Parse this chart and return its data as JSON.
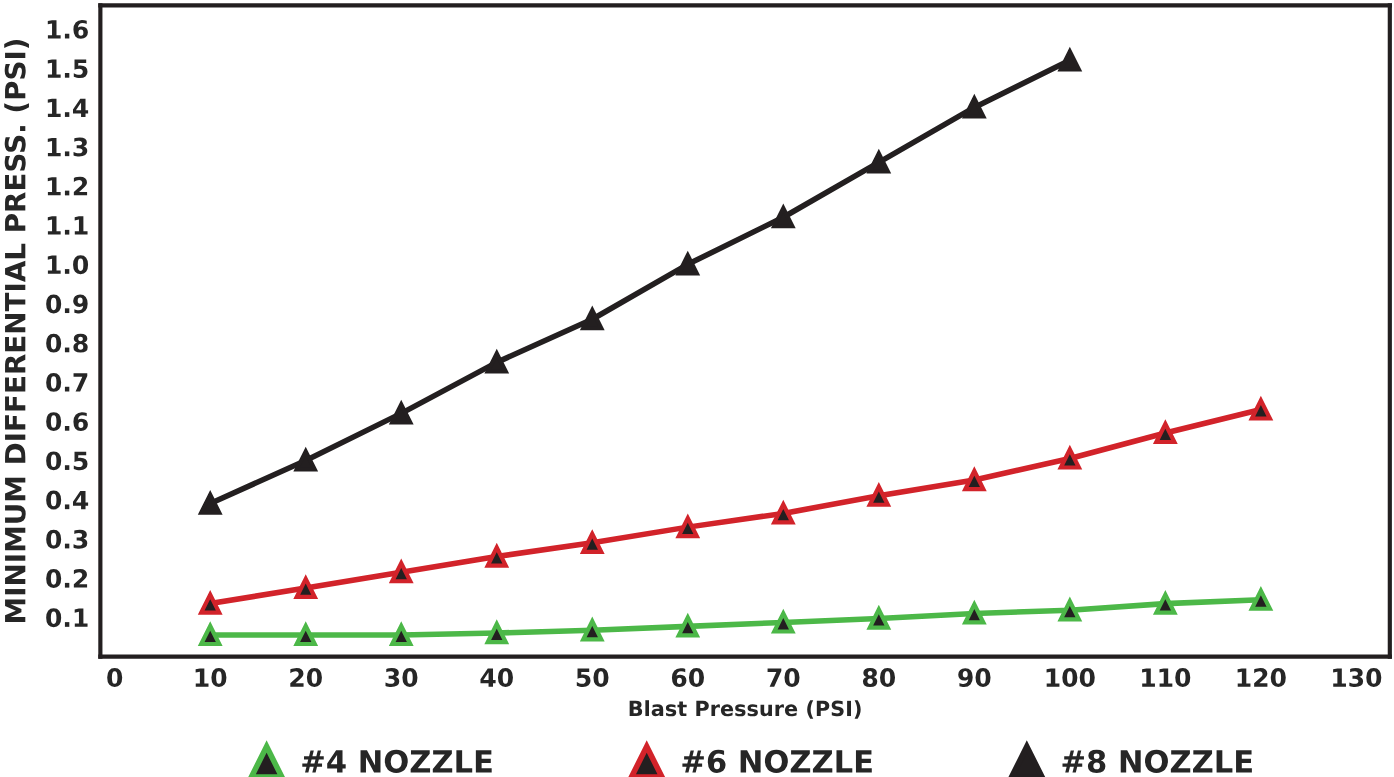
{
  "chart_data": {
    "type": "line",
    "xlabel": "Blast Pressure (PSI)",
    "ylabel": "MINIMUM DIFFERENTIAL PRESS. (PSI)",
    "x": [
      10,
      20,
      30,
      40,
      50,
      60,
      70,
      80,
      90,
      100,
      110,
      120
    ],
    "series": [
      {
        "name": "#4 NOZZLE",
        "color": "#4cb848",
        "values": [
          0.055,
          0.055,
          0.055,
          0.06,
          0.067,
          0.077,
          0.087,
          0.097,
          0.11,
          0.118,
          0.135,
          0.145
        ]
      },
      {
        "name": "#6 NOZZLE",
        "color": "#d2232a",
        "values": [
          0.135,
          0.175,
          0.215,
          0.255,
          0.29,
          0.33,
          0.365,
          0.41,
          0.45,
          0.505,
          0.57,
          0.63
        ]
      },
      {
        "name": "#8 NOZZLE",
        "color": "#231f20",
        "values": [
          0.39,
          0.5,
          0.62,
          0.75,
          0.86,
          1.0,
          1.12,
          1.26,
          1.4,
          1.52,
          null,
          null
        ]
      }
    ],
    "xlim": [
      -1.5,
      133.5
    ],
    "xticks": [
      0,
      10,
      20,
      30,
      40,
      50,
      60,
      70,
      80,
      90,
      100,
      110,
      120,
      130
    ],
    "ylim": [
      0,
      1.66
    ],
    "yticks": [
      0.1,
      0.2,
      0.3,
      0.4,
      0.5,
      0.6,
      0.7,
      0.8,
      0.9,
      {
        "value": 1,
        "label": "1.0"
      },
      1.1,
      1.2,
      1.3,
      1.4,
      1.5,
      1.6
    ],
    "marker": "triangle",
    "line_style": "solid",
    "grid": false,
    "legend": "bottom"
  }
}
